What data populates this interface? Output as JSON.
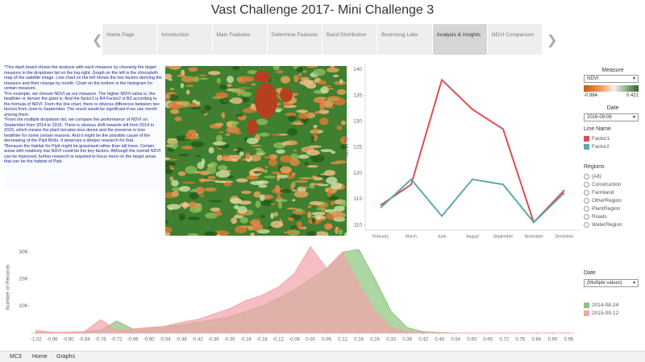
{
  "title": "Vast Challenge 2017- Mini Challenge 3",
  "nav_tabs": [
    "Home Page",
    "Introduction",
    "Main Features",
    "Determine Features",
    "Band Distribution",
    "Boonsong Lake",
    "Analysis & Insights",
    "NDVI Comparison"
  ],
  "description": [
    "*This dash board shows the analysis with each measure by choosing the target measure in the dropdown list on the top-right. Graph on the left is the choropleth map of the satellite image. Line chart on the left shows the two factors deriving the measure and their change by month. Chart on the bottom is the histogram for certain measure.",
    "*For example,  we choose NDVI as our measure. The higher NDVI value is, the healthier or denser the plant is. And the factor1 is B4 Factor2 is B3 according to the formula of NDVI. From the line chart, there is obvious difference between two factors from June to September. The result would  be significant if we use month among them.",
    "*From the multiple dropdown list, we compare the performance of NDVI on September from 2014  to 2015. There is obvious shift towards left from 2014 to 2015, which means the plant became less dense and the preserve is less healthier for some certain reasons. And it might be the possible cause of the decreasing of the Pipit Birds. It deserves a deeper research for that.",
    "*Because the habitat for Pipit might be grassland rather than tall trees. Certain areas with relatively low NDVI could be the key factors. Although the overall NDVI can be improved, further research is required to focus more on the target areas that can be the habitat of Pipit."
  ],
  "filters": {
    "measure_label": "Measure",
    "measure_value": "NDVI",
    "color_min": -0.984,
    "color_max": 0.421,
    "date_label": "Date",
    "date_value": "2016-09-06",
    "line_name_label": "Line Name",
    "regions_label": "Regions",
    "regions": [
      "(All)",
      "Construction",
      "Farmland",
      "OtherRegion",
      "PlantRegion",
      "Roads",
      "WaterRegion"
    ],
    "hist_date_label": "Date",
    "hist_date_value": "(Multiple values)"
  },
  "bottom_tabs": [
    "MC3",
    "Home",
    "Graphs"
  ],
  "chart_data": [
    {
      "type": "line",
      "y_label": "NDVI %",
      "categories": [
        "February",
        "March",
        "June",
        "August",
        "September",
        "November",
        "December"
      ],
      "series": [
        {
          "name": "Factor1",
          "color": "#dc4f50",
          "values": [
            113.8,
            117.8,
            138,
            132.3,
            128.5,
            110.5,
            116.7
          ]
        },
        {
          "name": "Factor2",
          "color": "#5fa9a8",
          "values": [
            113.3,
            118.8,
            111.7,
            118.8,
            117.8,
            110.5,
            116.2
          ]
        }
      ],
      "ylim": [
        109,
        141
      ],
      "yticks": [
        110,
        115,
        120,
        125,
        130,
        135,
        140
      ],
      "grid": false
    },
    {
      "type": "area",
      "y_label": "Number of Records",
      "x": [
        -1.02,
        -0.96,
        -0.9,
        -0.84,
        -0.78,
        -0.72,
        -0.66,
        -0.6,
        -0.54,
        -0.48,
        -0.42,
        -0.36,
        -0.3,
        -0.24,
        -0.18,
        -0.12,
        -0.06,
        0,
        0.06,
        0.12,
        0.18,
        0.24,
        0.3,
        0.36,
        0.42,
        0.48,
        0.54,
        0.6,
        0.66,
        0.72,
        0.78,
        0.84,
        0.9,
        0.96
      ],
      "series": [
        {
          "name": "2014-08-24",
          "color": "#8cc47a",
          "values": [
            200,
            200,
            300,
            500,
            1000,
            4500,
            1500,
            2000,
            2500,
            3000,
            4000,
            5000,
            6000,
            8000,
            10000,
            13000,
            16000,
            20000,
            24000,
            30000,
            31000,
            20000,
            8000,
            2000,
            500,
            200,
            0,
            0,
            0,
            0,
            0,
            0,
            0,
            0
          ]
        },
        {
          "name": "2015-09-12",
          "color": "#f2a3ab",
          "values": [
            1000,
            300,
            300,
            500,
            5000,
            1000,
            1500,
            2000,
            2500,
            4000,
            5000,
            7000,
            9000,
            12000,
            14000,
            17000,
            22000,
            32000,
            24000,
            30000,
            18000,
            8000,
            2000,
            500,
            200,
            0,
            0,
            0,
            0,
            0,
            0,
            0,
            0,
            0
          ]
        }
      ],
      "xlim": [
        -1.04,
        0.98
      ],
      "xticks": [
        {
          "value": -1.02,
          "label": "-1.02"
        },
        {
          "value": -0.96,
          "label": "-0.96"
        },
        {
          "value": -0.9,
          "label": "-0.90"
        },
        {
          "value": -0.84,
          "label": "-0.84"
        },
        {
          "value": -0.78,
          "label": "-0.78"
        },
        {
          "value": -0.72,
          "label": "-0.72"
        },
        {
          "value": -0.66,
          "label": "-0.66"
        },
        {
          "value": -0.6,
          "label": "-0.60"
        },
        {
          "value": -0.54,
          "label": "-0.54"
        },
        {
          "value": -0.48,
          "label": "-0.48"
        },
        {
          "value": -0.42,
          "label": "-0.42"
        },
        {
          "value": -0.36,
          "label": "-0.36"
        },
        {
          "value": -0.3,
          "label": "-0.30"
        },
        {
          "value": -0.24,
          "label": "-0.24"
        },
        {
          "value": -0.18,
          "label": "-0.18"
        },
        {
          "value": -0.12,
          "label": "-0.12"
        },
        {
          "value": -0.06,
          "label": "-0.06"
        },
        {
          "value": 0,
          "label": "0.00"
        },
        {
          "value": 0.06,
          "label": "0.06"
        },
        {
          "value": 0.12,
          "label": "0.12"
        },
        {
          "value": 0.18,
          "label": "0.18"
        },
        {
          "value": 0.24,
          "label": "0.24"
        },
        {
          "value": 0.3,
          "label": "0.30"
        },
        {
          "value": 0.36,
          "label": "0.36"
        },
        {
          "value": 0.42,
          "label": "0.42"
        },
        {
          "value": 0.48,
          "label": "0.48"
        },
        {
          "value": 0.54,
          "label": "0.54"
        },
        {
          "value": 0.6,
          "label": "0.60"
        },
        {
          "value": 0.66,
          "label": "0.66"
        },
        {
          "value": 0.72,
          "label": "0.72"
        },
        {
          "value": 0.78,
          "label": "0.78"
        },
        {
          "value": 0.84,
          "label": "0.84"
        },
        {
          "value": 0.9,
          "label": "0.90"
        },
        {
          "value": 0.96,
          "label": "0.96"
        }
      ],
      "ylim": [
        0,
        34000
      ],
      "yticks": [
        {
          "value": 10000,
          "label": "10K"
        },
        {
          "value": 20000,
          "label": "20K"
        },
        {
          "value": 30000,
          "label": "30K"
        }
      ],
      "grid": false
    }
  ]
}
